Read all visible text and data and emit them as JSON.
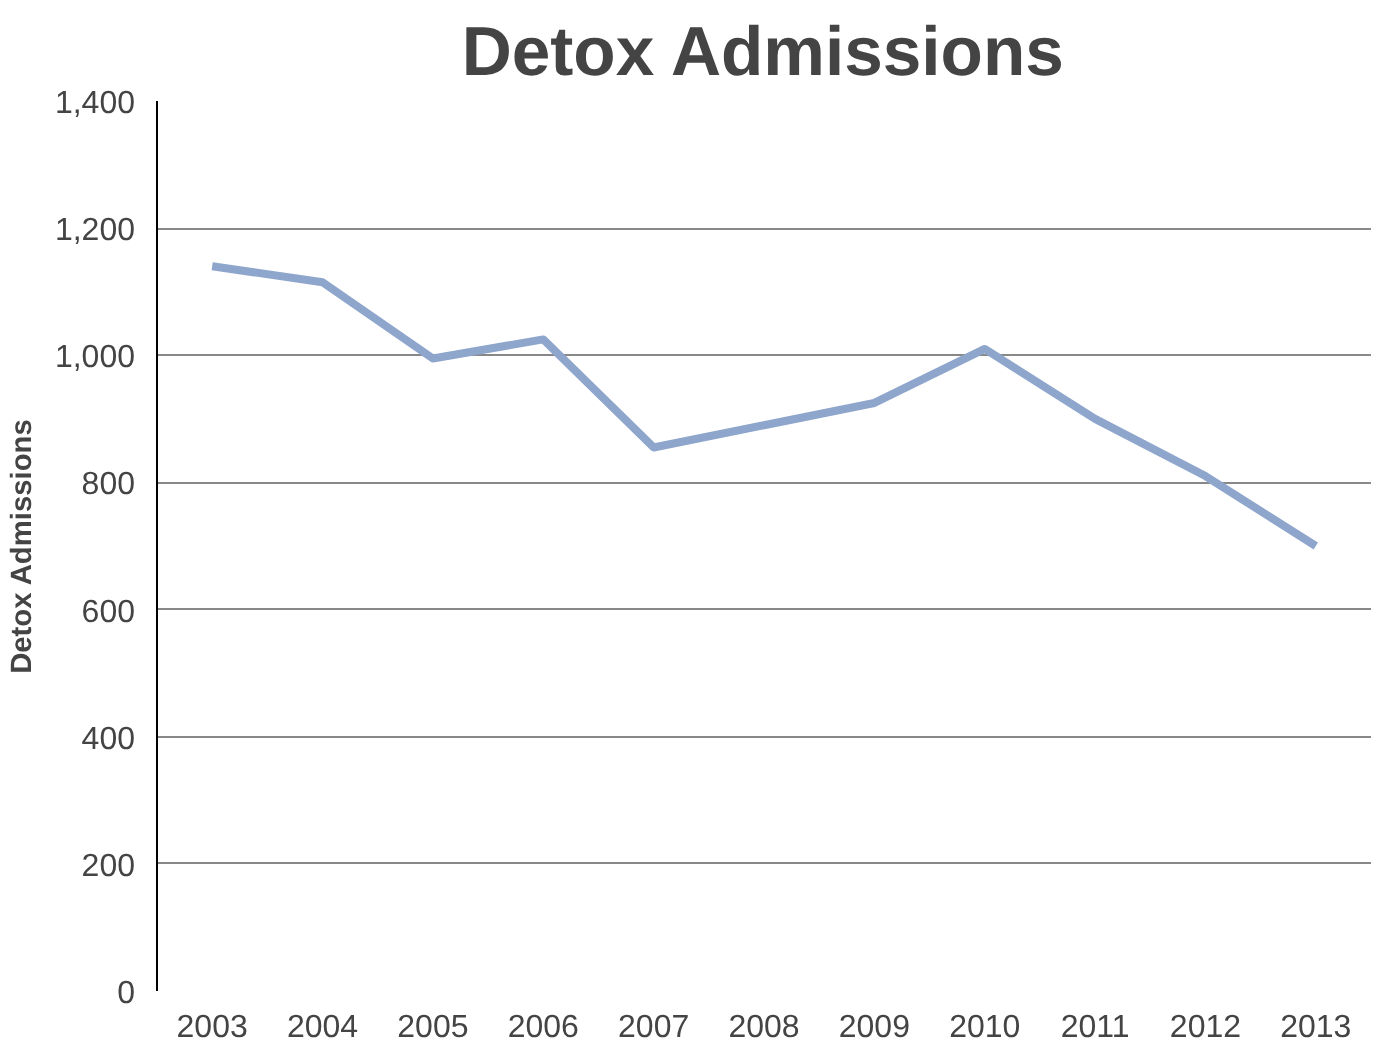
{
  "chart_data": {
    "type": "line",
    "title": "Detox Admissions",
    "ylabel": "Detox Admissions",
    "categories": [
      "2003",
      "2004",
      "2005",
      "2006",
      "2007",
      "2008",
      "2009",
      "2010",
      "2011",
      "2012",
      "2013"
    ],
    "series": [
      {
        "color": "#8ea5cc",
        "values": [
          1140,
          1115,
          995,
          1025,
          855,
          890,
          925,
          1010,
          900,
          810,
          700
        ]
      }
    ],
    "ylim": [
      0,
      1400
    ],
    "yticks": [
      0,
      {
        "value": 200,
        "label": "200"
      },
      {
        "value": 400,
        "label": "400"
      },
      {
        "value": 600,
        "label": "600"
      },
      {
        "value": 800,
        "label": "800"
      },
      {
        "value": 1000,
        "label": "1,000"
      },
      {
        "value": 1200,
        "label": "1,200"
      },
      {
        "value": 1400,
        "label": "1,400"
      }
    ],
    "grid": "y",
    "marker": "none",
    "line_style": "solid"
  }
}
